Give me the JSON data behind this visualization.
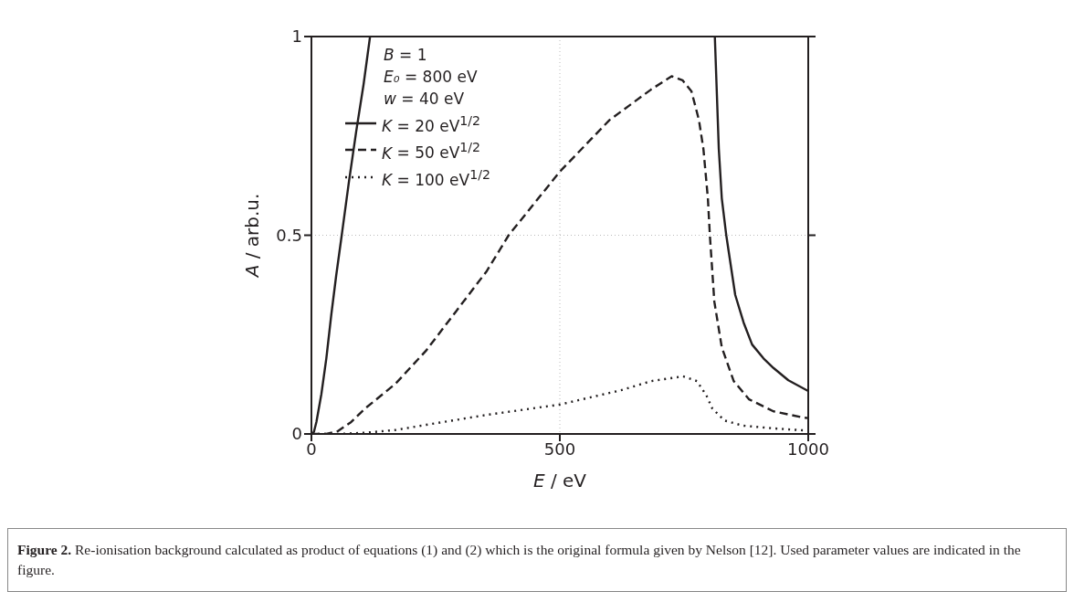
{
  "chart_data": {
    "type": "line",
    "xlabel": "E / eV",
    "ylabel": "A / arb.u.",
    "xlim": [
      0,
      1000
    ],
    "ylim": [
      0,
      1
    ],
    "xticks": [
      0,
      500,
      1000
    ],
    "yticks": [
      0,
      0.5,
      1
    ],
    "grid": true,
    "legend": "top left",
    "legend_title": "B = 1\nE₀ = 800 eV\nw = 40 eV",
    "annotations": [
      "Figure 2. Re-ionisation background calculated as product of equations (1) and (2) which is the original formula given by Nelson [12]. Used parameter values are indicated in the figure."
    ],
    "series": [
      {
        "name": "K = 20 eV$^{1/2}$",
        "color": "#231f20",
        "line_style": "solid",
        "x": [
          0,
          5,
          10,
          20,
          30,
          40,
          50,
          61,
          75,
          90,
          105,
          118,
          465,
          812,
          820,
          826,
          835,
          853,
          870,
          887,
          910,
          930,
          960,
          1000
        ],
        "values": [
          0,
          0.005,
          0.03,
          0.1,
          0.19,
          0.3,
          0.4,
          0.5,
          0.63,
          0.76,
          0.88,
          1,
          null,
          1,
          0.717,
          0.593,
          0.5,
          0.35,
          0.28,
          0.225,
          0.19,
          0.166,
          0.135,
          0.108
        ]
      },
      {
        "name": "K = 50 eV$^{1/2}$",
        "color": "#231f20",
        "line_style": "dashed",
        "x": [
          0,
          30,
          53,
          80,
          108,
          169,
          231,
          292,
          353,
          397,
          500,
          600,
          684,
          725,
          747,
          765,
          780,
          789,
          798,
          802,
          811,
          826,
          850,
          881,
          930,
          991,
          1000
        ],
        "values": [
          0,
          0,
          0.007,
          0.03,
          0.064,
          0.126,
          0.21,
          0.31,
          0.41,
          0.5,
          0.66,
          0.79,
          0.867,
          0.9,
          0.89,
          0.862,
          0.79,
          0.717,
          0.593,
          0.5,
          0.333,
          0.218,
          0.133,
          0.087,
          0.057,
          0.041,
          0.04
        ]
      },
      {
        "name": "K = 100 eV$^{1/2}$",
        "color": "#231f20",
        "line_style": "dotted",
        "x": [
          0,
          50,
          108,
          170,
          231,
          353,
          500,
          623,
          684,
          748,
          776,
          795,
          807,
          831,
          868,
          930,
          991,
          1000
        ],
        "values": [
          0,
          0,
          0.003,
          0.01,
          0.023,
          0.048,
          0.074,
          0.11,
          0.133,
          0.145,
          0.133,
          0.097,
          0.064,
          0.034,
          0.021,
          0.014,
          0.009,
          0.008
        ]
      }
    ]
  }
}
